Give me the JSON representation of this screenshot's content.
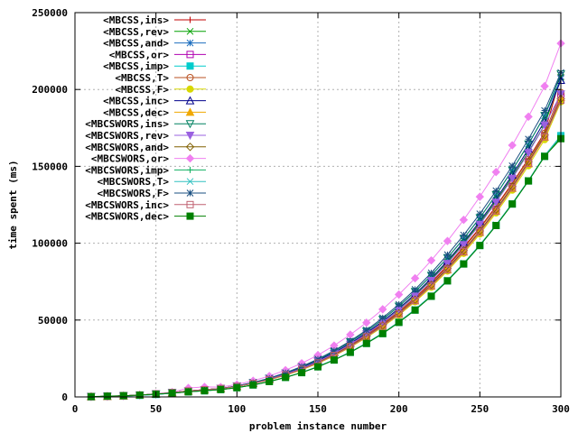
{
  "chart_data": {
    "type": "line",
    "title": "",
    "xlabel": "problem instance number",
    "ylabel": "time spent (ms)",
    "xlim": [
      0,
      300
    ],
    "ylim": [
      0,
      250000
    ],
    "xticks": [
      "0",
      "50",
      "100",
      "150",
      "200",
      "250",
      "300"
    ],
    "yticks": [
      "0",
      "50000",
      "100000",
      "150000",
      "200000",
      "250000"
    ],
    "grid": true,
    "legend_position": "top-left",
    "x": [
      10,
      20,
      30,
      40,
      50,
      60,
      70,
      80,
      90,
      100,
      110,
      120,
      130,
      140,
      150,
      160,
      170,
      180,
      190,
      200,
      210,
      220,
      230,
      240,
      250,
      260,
      270,
      280,
      290,
      300
    ],
    "series": [
      {
        "name": "<MBCSS,ins>",
        "color": "#c00000",
        "marker": "plus",
        "values": [
          200,
          400,
          700,
          1200,
          1900,
          2800,
          3900,
          4700,
          5500,
          7000,
          9000,
          11600,
          14800,
          18500,
          23000,
          28000,
          34000,
          40500,
          47500,
          55500,
          64500,
          74500,
          85500,
          97500,
          110000,
          124000,
          139000,
          155000,
          172000,
          209000
        ]
      },
      {
        "name": "<MBCSS,rev>",
        "color": "#00a000",
        "marker": "x",
        "values": [
          200,
          400,
          700,
          1200,
          1900,
          2800,
          3900,
          4700,
          5500,
          7000,
          9000,
          11700,
          15000,
          18800,
          23400,
          28500,
          34600,
          41300,
          48500,
          56700,
          66000,
          76300,
          87600,
          100000,
          113000,
          127500,
          143000,
          159500,
          177000,
          208000
        ]
      },
      {
        "name": "<MBCSS,and>",
        "color": "#1f6fbf",
        "marker": "star",
        "values": [
          200,
          400,
          700,
          1200,
          1900,
          2800,
          3900,
          4700,
          5500,
          7100,
          9300,
          12100,
          15500,
          19500,
          24200,
          29600,
          35800,
          42700,
          50400,
          59000,
          68500,
          79000,
          90500,
          103000,
          116500,
          131500,
          147500,
          164500,
          183000,
          207000
        ]
      },
      {
        "name": "<MBCSS,or>",
        "color": "#b000b0",
        "marker": "square",
        "values": [
          200,
          400,
          700,
          1200,
          1900,
          2800,
          3900,
          4700,
          5500,
          6900,
          8900,
          11400,
          14500,
          18100,
          22500,
          27500,
          33300,
          39700,
          46700,
          54500,
          63300,
          73000,
          83700,
          95400,
          108000,
          121800,
          136600,
          152500,
          169500,
          196000
        ]
      },
      {
        "name": "<MBCSS,imp>",
        "color": "#00cccc",
        "marker": "filled-square",
        "values": [
          150,
          350,
          600,
          1000,
          1600,
          2400,
          3300,
          4000,
          4800,
          6000,
          7800,
          10000,
          12700,
          15800,
          19600,
          24000,
          29000,
          34800,
          41200,
          48500,
          56500,
          65500,
          75500,
          86500,
          98500,
          111500,
          125500,
          140500,
          156500,
          170000
        ]
      },
      {
        "name": "<MBCSS,T>",
        "color": "#b85020",
        "marker": "circle",
        "values": [
          200,
          400,
          700,
          1200,
          1900,
          2800,
          3900,
          4700,
          5500,
          7000,
          9000,
          11500,
          14700,
          18400,
          22800,
          27800,
          33700,
          40200,
          47300,
          55200,
          64100,
          73900,
          84800,
          96700,
          109500,
          123400,
          138400,
          154400,
          171500,
          198000
        ]
      },
      {
        "name": "<MBCSS,F>",
        "color": "#d8d800",
        "marker": "filled-circle",
        "values": [
          200,
          400,
          700,
          1200,
          1900,
          2800,
          3900,
          4700,
          5500,
          6800,
          8700,
          11100,
          14100,
          17600,
          21800,
          26700,
          32300,
          38600,
          45600,
          53300,
          61900,
          71400,
          81900,
          93400,
          106000,
          119700,
          134500,
          150400,
          167400,
          192000
        ]
      },
      {
        "name": "<MBCSS,inc>",
        "color": "#00008b",
        "marker": "triangle",
        "values": [
          200,
          400,
          700,
          1200,
          1900,
          2800,
          3900,
          4700,
          5500,
          7000,
          9100,
          11800,
          15100,
          19000,
          23600,
          28800,
          34900,
          41700,
          49200,
          57600,
          66900,
          77200,
          88500,
          100800,
          114200,
          128700,
          144400,
          161300,
          179500,
          206000
        ]
      },
      {
        "name": "<MBCSS,dec>",
        "color": "#f0a800",
        "marker": "filled-triangle",
        "values": [
          200,
          400,
          700,
          1200,
          1900,
          2800,
          3900,
          4700,
          5500,
          6900,
          8800,
          11200,
          14200,
          17800,
          22000,
          26900,
          32600,
          39000,
          46000,
          53800,
          62500,
          72100,
          82700,
          94300,
          107000,
          120800,
          135700,
          151800,
          169000,
          195000
        ]
      },
      {
        "name": "<MBCSWORS,ins>",
        "color": "#008060",
        "marker": "inverted-triangle",
        "values": [
          200,
          400,
          700,
          1200,
          1900,
          2800,
          3900,
          4700,
          5500,
          7100,
          9300,
          12100,
          15500,
          19500,
          24200,
          29600,
          35800,
          42700,
          50400,
          59000,
          68500,
          79000,
          90500,
          103000,
          116500,
          131500,
          147500,
          164500,
          183000,
          210000
        ]
      },
      {
        "name": "<MBCSWORS,rev>",
        "color": "#9a60e0",
        "marker": "filled-inverted-triangle",
        "values": [
          200,
          400,
          700,
          1200,
          1900,
          2800,
          3900,
          4700,
          5500,
          7000,
          9000,
          11600,
          14800,
          18600,
          23100,
          28200,
          34200,
          40900,
          48300,
          56500,
          65600,
          75700,
          86800,
          99000,
          112200,
          126600,
          142100,
          158800,
          176800,
          197000
        ]
      },
      {
        "name": "<MBCSWORS,and>",
        "color": "#806000",
        "marker": "diamond",
        "values": [
          200,
          400,
          700,
          1200,
          1900,
          2800,
          3900,
          4700,
          5500,
          6900,
          8900,
          11300,
          14400,
          18000,
          22300,
          27300,
          33000,
          39400,
          46500,
          54400,
          63200,
          72900,
          83600,
          95300,
          108000,
          121900,
          136900,
          153000,
          170300,
          194000
        ]
      },
      {
        "name": "<MBCSWORS,or>",
        "color": "#f080f0",
        "marker": "filled-diamond",
        "values": [
          200,
          400,
          700,
          1200,
          2000,
          3100,
          5800,
          6500,
          6400,
          8100,
          10500,
          13600,
          17400,
          21900,
          27200,
          33400,
          40500,
          48300,
          57000,
          66600,
          77200,
          88800,
          101400,
          115200,
          130200,
          146300,
          163700,
          182300,
          202200,
          230000
        ]
      },
      {
        "name": "<MBCSWORS,imp>",
        "color": "#10b060",
        "marker": "plus",
        "values": [
          150,
          350,
          600,
          1000,
          1600,
          2400,
          3300,
          4000,
          4800,
          6000,
          7800,
          10000,
          12700,
          15800,
          19600,
          24000,
          29000,
          34800,
          41200,
          48500,
          56500,
          65500,
          75500,
          86500,
          98500,
          111500,
          125500,
          140500,
          156500,
          169000
        ]
      },
      {
        "name": "<MBCSWORS,T>",
        "color": "#30c0c0",
        "marker": "x",
        "values": [
          150,
          350,
          600,
          1000,
          1600,
          2400,
          3300,
          4000,
          4800,
          6000,
          7900,
          10100,
          12800,
          16000,
          19800,
          24200,
          29300,
          35100,
          41600,
          48900,
          57000,
          66000,
          76000,
          87000,
          99000,
          112000,
          126000,
          141000,
          157000,
          170000
        ]
      },
      {
        "name": "<MBCSWORS,F>",
        "color": "#1a4f80",
        "marker": "star",
        "values": [
          200,
          400,
          700,
          1200,
          1900,
          2800,
          3900,
          4700,
          5500,
          7100,
          9300,
          12200,
          15700,
          19800,
          24600,
          30100,
          36400,
          43500,
          51400,
          60200,
          69900,
          80700,
          92500,
          105300,
          119100,
          134100,
          150300,
          167700,
          186300,
          211000
        ]
      },
      {
        "name": "<MBCSWORS,inc>",
        "color": "#c06070",
        "marker": "square",
        "values": [
          200,
          400,
          700,
          1200,
          1900,
          2800,
          3900,
          4700,
          5500,
          6900,
          8800,
          11200,
          14300,
          17900,
          22100,
          27000,
          32700,
          39100,
          46100,
          54000,
          62700,
          72300,
          82900,
          94500,
          107200,
          121000,
          135900,
          152000,
          169200,
          193000
        ]
      },
      {
        "name": "<MBCSWORS,dec>",
        "color": "#008000",
        "marker": "filled-square",
        "values": [
          200,
          500,
          800,
          1200,
          1800,
          2500,
          3300,
          4000,
          4800,
          6000,
          7800,
          10000,
          12700,
          15800,
          19600,
          24000,
          29000,
          34800,
          41200,
          48500,
          56500,
          65500,
          75500,
          86500,
          98500,
          111500,
          125500,
          140500,
          156500,
          168000
        ]
      }
    ]
  }
}
